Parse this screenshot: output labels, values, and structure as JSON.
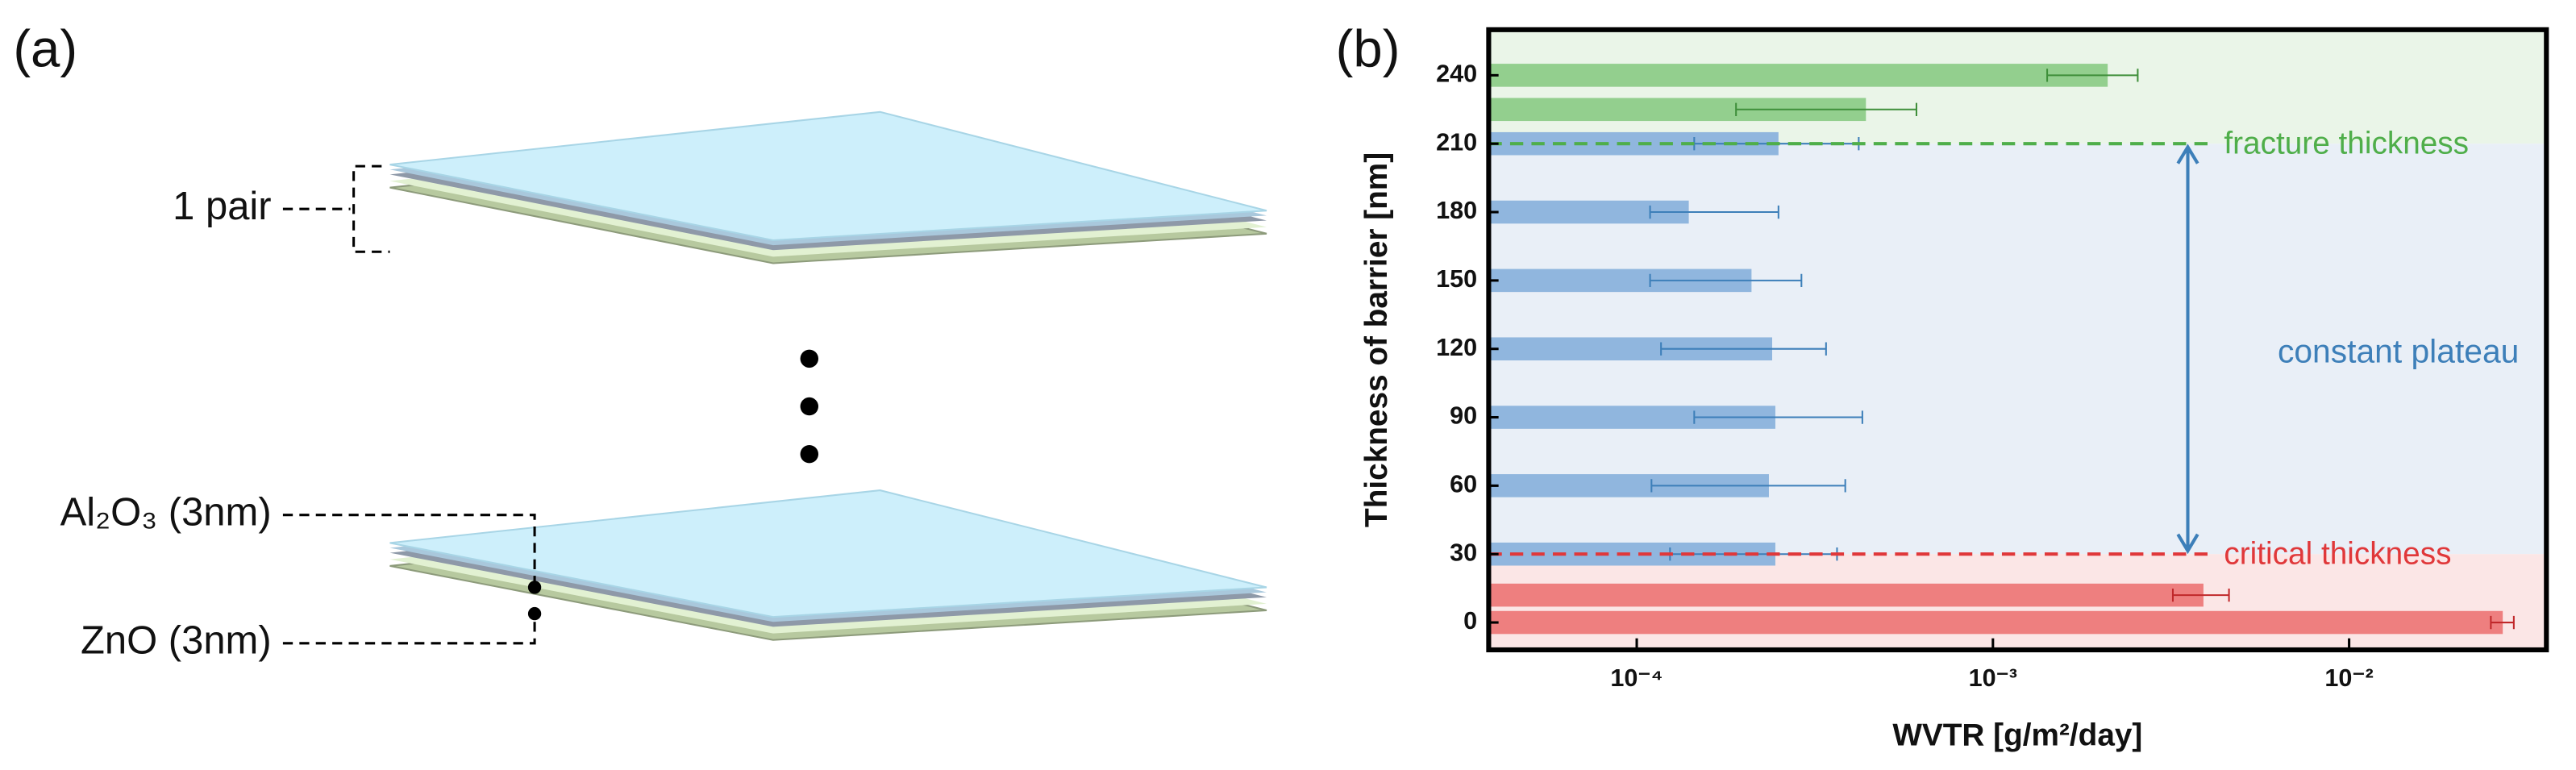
{
  "panel_a": {
    "label": "(a)",
    "pair_label": "1 pair",
    "layer_top_label": "Al₂O₃ (3nm)",
    "layer_bottom_label": "ZnO (3nm)"
  },
  "chart_data": {
    "type": "hbar",
    "panel_label": "(b)",
    "xlabel": "WVTR [g/m²/day]",
    "ylabel": "Thickness of barrier [nm]",
    "xscale": "log",
    "xlim": [
      3.84e-05,
      0.0358
    ],
    "xticks": [
      {
        "value": 0.0001,
        "label": "10⁻⁴"
      },
      {
        "value": 0.001,
        "label": "10⁻³"
      },
      {
        "value": 0.01,
        "label": "10⁻²"
      }
    ],
    "ylim": [
      -12,
      260
    ],
    "yticks": [
      0,
      30,
      60,
      90,
      120,
      150,
      180,
      210,
      240
    ],
    "series": [
      {
        "color": "#93cf8e",
        "error_color": "#3f8f3a",
        "y": [
          240,
          225
        ],
        "values": [
          0.0021,
          0.00044
        ],
        "xerr_minus": [
          0.00068,
          0.00025
        ],
        "xerr_plus": [
          0.00045,
          0.00017
        ]
      },
      {
        "color": "#90b6de",
        "error_color": "#3d7fb9",
        "y": [
          210,
          180,
          150,
          120,
          90,
          60,
          30
        ],
        "values": [
          0.00025,
          0.00014,
          0.00021,
          0.00024,
          0.000245,
          0.000235,
          0.000245
        ],
        "xerr_minus": [
          0.000105,
          3.1e-05,
          0.000101,
          0.000123,
          0.0001,
          0.000125,
          0.000121
        ],
        "xerr_plus": [
          0.00017,
          0.00011,
          8e-05,
          0.0001,
          0.000185,
          0.00015,
          0.00012
        ]
      },
      {
        "color": "#ee7f7f",
        "error_color": "#c0282a",
        "y": [
          12,
          0
        ],
        "values": [
          0.0039,
          0.027
        ],
        "xerr_minus": [
          0.0007,
          0.002
        ],
        "xerr_plus": [
          0.0007,
          0.002
        ]
      }
    ],
    "thresholds": [
      {
        "value": 210,
        "label": "fracture thickness",
        "color": "#4fae4a",
        "band": "#eaf5e8"
      },
      {
        "value": 30,
        "label": "critical thickness",
        "color": "#e0383a",
        "band": "#fbe6e6"
      }
    ],
    "plateau": {
      "label": "constant plateau",
      "color": "#3d7fb9",
      "band": "#e9eff7"
    }
  }
}
